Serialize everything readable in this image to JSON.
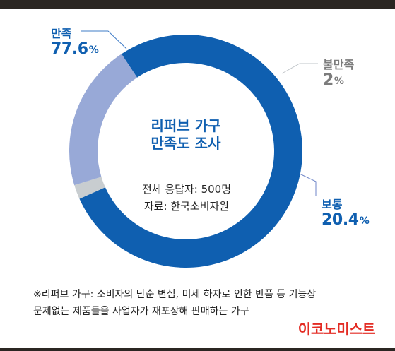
{
  "header": {
    "bar_color": "#2b2622"
  },
  "chart_data": {
    "type": "pie",
    "title": "리퍼브 가구 만족도 조사",
    "title_lines": [
      "리퍼브 가구",
      "만족도 조사"
    ],
    "categories": [
      "만족",
      "불만족",
      "보통"
    ],
    "values": [
      77.6,
      2,
      20.4
    ],
    "value_labels": [
      "77.6%",
      "2%",
      "20.4%"
    ],
    "colors": [
      "#0f5fb0",
      "#c8cdd0",
      "#98a9d7"
    ],
    "center_notes": [
      "전체 응답자: 500명",
      "자료: 한국소비자원"
    ]
  },
  "labels": {
    "satisfied": {
      "name": "만족",
      "value": "77.6",
      "unit": "%"
    },
    "unsatisfied": {
      "name": "불만족",
      "value": "2",
      "unit": "%"
    },
    "normal": {
      "name": "보통",
      "value": "20.4",
      "unit": "%"
    }
  },
  "footer": {
    "footnote_lines": [
      "※리퍼브 가구: 소비자의 단순 변심, 미세 하자로 인한 반품 등 기능상",
      "문제없는 제품들을 사업자가 재포장해 판매하는 가구"
    ],
    "brand": "이코노미스트",
    "brand_color": "#e32c24"
  }
}
